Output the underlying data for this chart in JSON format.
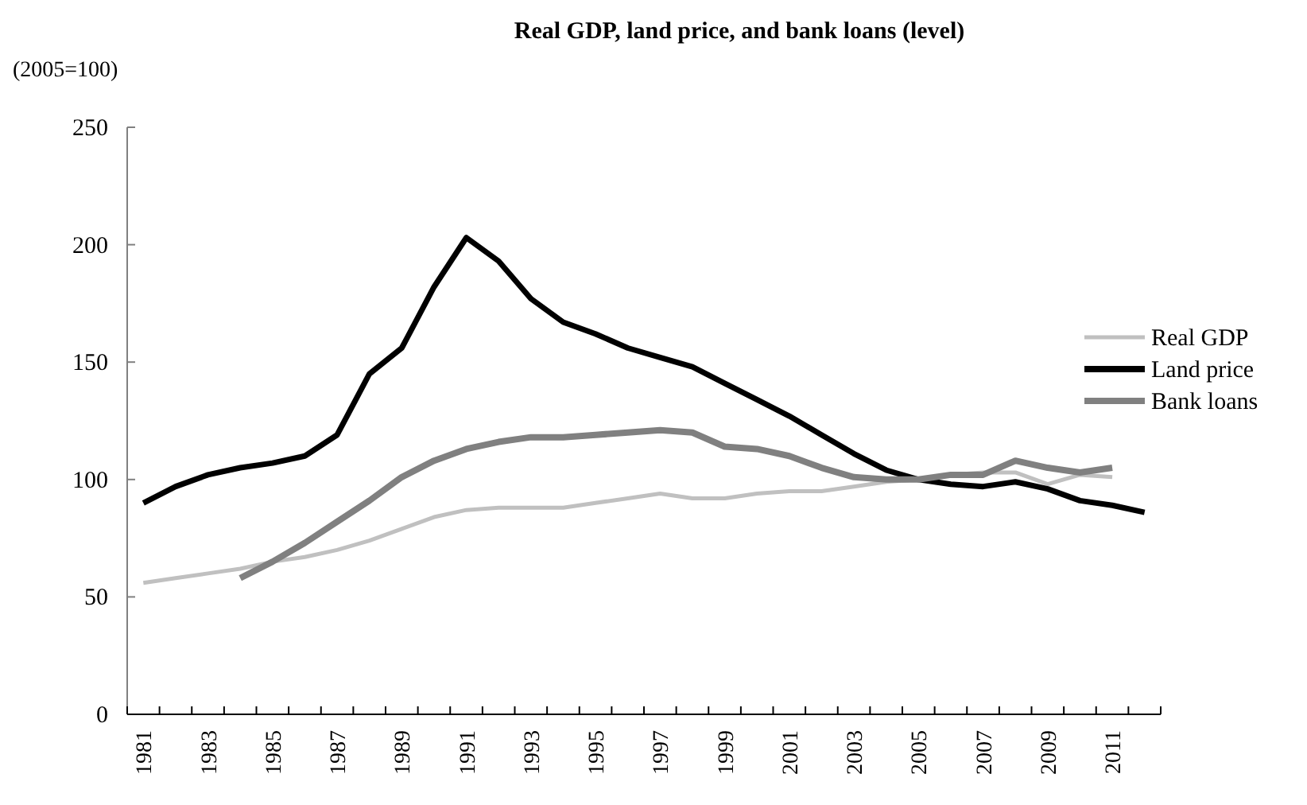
{
  "chart_data": {
    "type": "line",
    "title": "Real GDP, land price, and bank loans (level)",
    "ylabel": "(2005=100)",
    "categories": [
      "1981",
      null,
      "1983",
      null,
      "1985",
      null,
      "1987",
      null,
      "1989",
      null,
      "1991",
      null,
      "1993",
      null,
      "1995",
      null,
      "1997",
      null,
      "1999",
      null,
      "2001",
      null,
      "2003",
      null,
      "2005",
      null,
      "2007",
      null,
      "2009",
      null,
      "2011",
      null
    ],
    "series": [
      {
        "name": "Real GDP",
        "color": "#c0c0c0",
        "values": [
          56,
          58,
          60,
          62,
          65,
          67,
          70,
          74,
          79,
          84,
          87,
          88,
          88,
          88,
          90,
          92,
          94,
          92,
          92,
          94,
          95,
          95,
          97,
          99,
          100,
          102,
          103,
          103,
          98,
          102,
          101,
          null
        ]
      },
      {
        "name": "Land price",
        "color": "#000000",
        "values": [
          90,
          97,
          102,
          105,
          107,
          110,
          119,
          145,
          156,
          182,
          203,
          193,
          177,
          167,
          162,
          156,
          152,
          148,
          141,
          134,
          127,
          119,
          111,
          104,
          100,
          98,
          97,
          99,
          96,
          91,
          89,
          86
        ]
      },
      {
        "name": "Bank loans",
        "color": "#808080",
        "values": [
          null,
          null,
          null,
          58,
          65,
          73,
          82,
          91,
          101,
          108,
          113,
          116,
          118,
          118,
          119,
          120,
          121,
          120,
          114,
          113,
          110,
          105,
          101,
          100,
          100,
          102,
          102,
          108,
          105,
          103,
          105,
          null
        ]
      }
    ],
    "ylim": [
      0,
      250
    ],
    "yticks": [
      0,
      50,
      100,
      150,
      200,
      250
    ],
    "grid": false,
    "legend": "right",
    "marker": "none",
    "line_style": "solid"
  }
}
